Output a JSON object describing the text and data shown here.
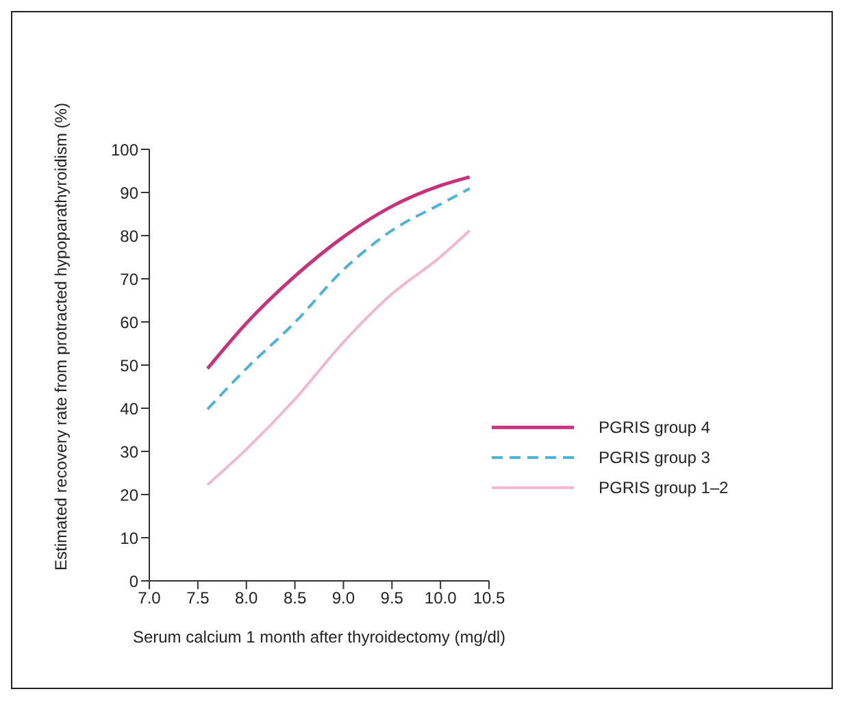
{
  "chart_data": {
    "type": "line",
    "xlabel": "Serum calcium 1 month after thyroidectomy (mg/dl)",
    "ylabel": "Estimated recovery rate from protracted hypoparathyroidism (%)",
    "x": [
      7.6,
      8.0,
      8.5,
      9.0,
      9.5,
      10.0,
      10.3
    ],
    "series": [
      {
        "name": "PGRIS group 4",
        "color": "#c8327a",
        "line_style": "solid",
        "values": [
          49.2,
          59.7,
          70.6,
          79.7,
          86.8,
          91.6,
          93.6
        ]
      },
      {
        "name": "PGRIS group 3",
        "color": "#4fb3d9",
        "line_style": "dashed",
        "values": [
          39.8,
          49.2,
          59.9,
          72.1,
          81.2,
          87.3,
          90.9
        ]
      },
      {
        "name": "PGRIS group 1–2",
        "color": "#f2b8cc",
        "line_style": "solid",
        "values": [
          22.3,
          30.5,
          42.1,
          55.3,
          66.5,
          75.1,
          81.2
        ]
      }
    ],
    "xlim": [
      7,
      10.5
    ],
    "xticks": [
      {
        "value": 7,
        "label": "7.0"
      },
      {
        "value": 7.5,
        "label": "7.5"
      },
      {
        "value": 8,
        "label": "8.0"
      },
      {
        "value": 8.5,
        "label": "8.5"
      },
      {
        "value": 9,
        "label": "9.0"
      },
      {
        "value": 9.5,
        "label": "9.5"
      },
      {
        "value": 10,
        "label": "10.0"
      },
      {
        "value": 10.5,
        "label": "10.5"
      }
    ],
    "ylim": [
      0,
      100
    ],
    "yticks": [
      0,
      10,
      20,
      30,
      40,
      50,
      60,
      70,
      80,
      90,
      100
    ],
    "grid": false,
    "legend": "right",
    "marker": "none"
  }
}
